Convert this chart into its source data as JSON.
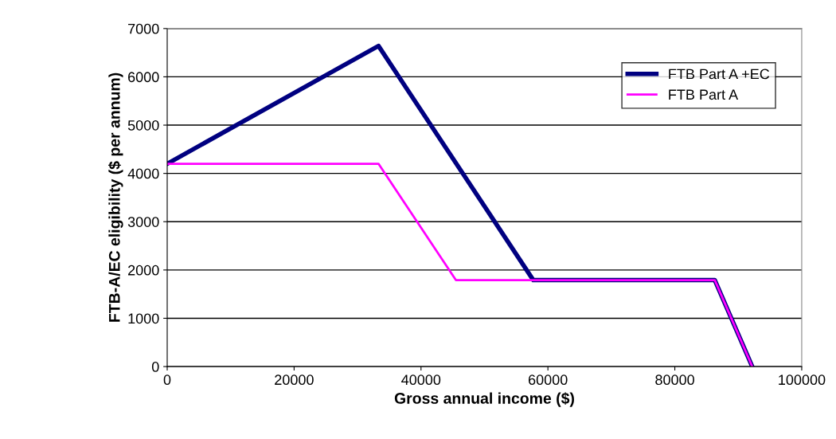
{
  "chart_data": {
    "type": "line",
    "xlabel": "Gross annual income ($)",
    "ylabel": "FTB-A/EC eligibility ($ per annum)",
    "xlim": [
      0,
      100000
    ],
    "xticks": [
      0,
      20000,
      40000,
      60000,
      80000,
      100000
    ],
    "ylim": [
      0,
      7000
    ],
    "yticks": [
      0,
      1000,
      2000,
      3000,
      4000,
      5000,
      6000,
      7000
    ],
    "grid": "y",
    "legend": "top right",
    "marker": "none",
    "line_style": "solid",
    "series": [
      {
        "name": "FTB Part A +EC",
        "color": "#000080",
        "x": [
          0,
          33300,
          57700,
          86300,
          92200
        ],
        "values": [
          4200,
          6640,
          1790,
          1790,
          0
        ]
      },
      {
        "name": "FTB Part A",
        "color": "#ff00ff",
        "x": [
          0,
          33300,
          45500,
          86300,
          92200
        ],
        "values": [
          4200,
          4200,
          1790,
          1790,
          0
        ]
      }
    ]
  }
}
